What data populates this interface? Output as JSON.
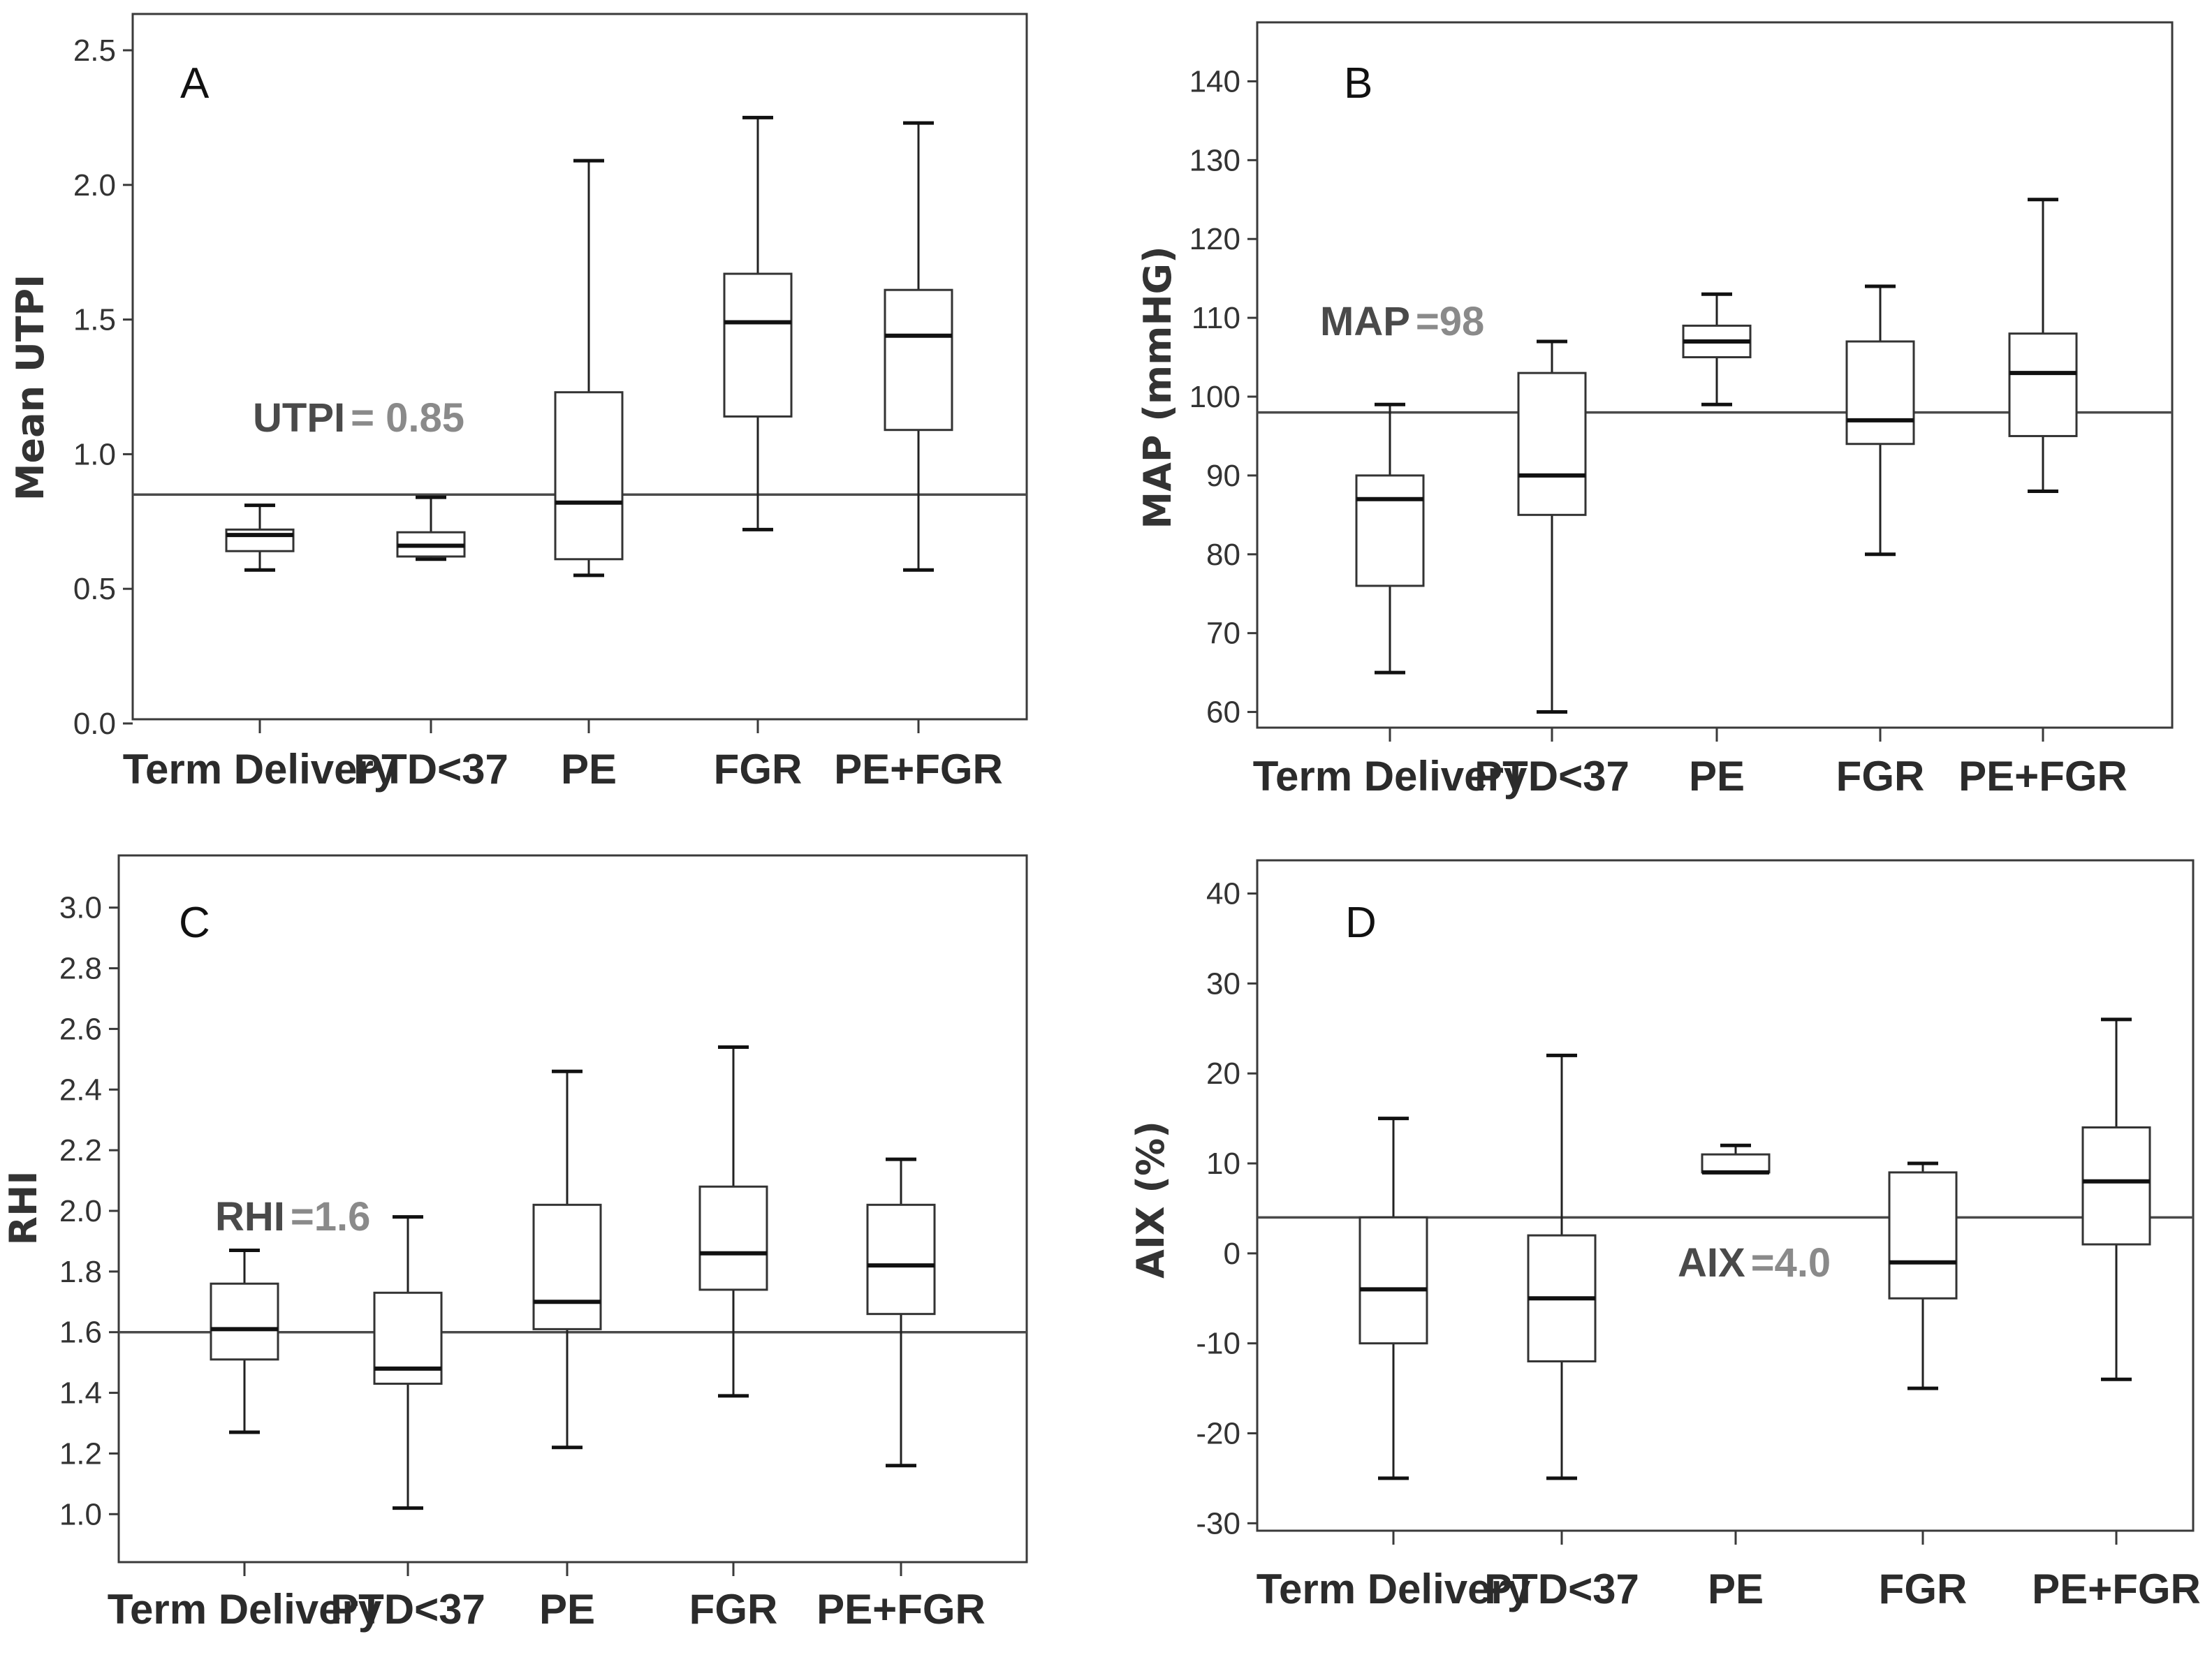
{
  "colors": {
    "frame": "#3a3a3a",
    "box_fill": "#ffffff",
    "reference_line": "#4a4a4a",
    "reference_value_text": "#8a8a8a"
  },
  "chart_data": [
    {
      "type": "box",
      "panel": "A",
      "ylabel": "Mean UTPI",
      "xlabel": "",
      "ylim": [
        0.0,
        2.5
      ],
      "yticks": [
        "0.0",
        "0.5",
        "1.0",
        "1.5",
        "2.0",
        "2.5"
      ],
      "categories": [
        "Term Delivery",
        "PTD<37",
        "PE",
        "FGR",
        "PE+FGR"
      ],
      "boxes": [
        {
          "min": 0.57,
          "q1": 0.64,
          "median": 0.7,
          "q3": 0.72,
          "max": 0.81
        },
        {
          "min": 0.61,
          "q1": 0.62,
          "median": 0.66,
          "q3": 0.71,
          "max": 0.84
        },
        {
          "min": 0.55,
          "q1": 0.61,
          "median": 0.82,
          "q3": 1.23,
          "max": 2.09
        },
        {
          "min": 0.72,
          "q1": 1.14,
          "median": 1.49,
          "q3": 1.67,
          "max": 2.25
        },
        {
          "min": 0.57,
          "q1": 1.09,
          "median": 1.44,
          "q3": 1.61,
          "max": 2.23
        }
      ],
      "reference": {
        "value": 0.85,
        "label": "UTPI",
        "value_text": "= 0.85"
      }
    },
    {
      "type": "box",
      "panel": "B",
      "ylabel": "MAP (mmHG)",
      "xlabel": "",
      "ylim": [
        55,
        145
      ],
      "yticks": [
        "60",
        "70",
        "80",
        "90",
        "100",
        "110",
        "120",
        "130",
        "140"
      ],
      "categories": [
        "Term Delivery",
        "PTD<37",
        "PE",
        "FGR",
        "PE+FGR"
      ],
      "boxes": [
        {
          "min": 65,
          "q1": 76,
          "median": 87,
          "q3": 90,
          "max": 99
        },
        {
          "min": 60,
          "q1": 85,
          "median": 90,
          "q3": 103,
          "max": 107
        },
        {
          "min": 99,
          "q1": 105,
          "median": 107,
          "q3": 109,
          "max": 113
        },
        {
          "min": 80,
          "q1": 94,
          "median": 97,
          "q3": 107,
          "max": 114
        },
        {
          "min": 88,
          "q1": 95,
          "median": 103,
          "q3": 108,
          "max": 125
        }
      ],
      "reference": {
        "value": 98,
        "label": "MAP",
        "value_text": "=98"
      }
    },
    {
      "type": "box",
      "panel": "C",
      "ylabel": "RHI",
      "xlabel": "",
      "ylim": [
        0.95,
        3.05
      ],
      "yticks": [
        "1.0",
        "1.2",
        "1.4",
        "1.6",
        "1.8",
        "2.0",
        "2.2",
        "2.4",
        "2.6",
        "2.8",
        "3.0"
      ],
      "categories": [
        "Term Delivery",
        "PTD<37",
        "PE",
        "FGR",
        "PE+FGR"
      ],
      "boxes": [
        {
          "min": 1.27,
          "q1": 1.51,
          "median": 1.61,
          "q3": 1.76,
          "max": 1.87
        },
        {
          "min": 1.02,
          "q1": 1.43,
          "median": 1.48,
          "q3": 1.73,
          "max": 1.98
        },
        {
          "min": 1.22,
          "q1": 1.61,
          "median": 1.7,
          "q3": 2.02,
          "max": 2.46
        },
        {
          "min": 1.39,
          "q1": 1.74,
          "median": 1.86,
          "q3": 2.08,
          "max": 2.54
        },
        {
          "min": 1.16,
          "q1": 1.66,
          "median": 1.82,
          "q3": 2.02,
          "max": 2.17
        }
      ],
      "reference": {
        "value": 1.6,
        "label": "RHI",
        "value_text": "=1.6"
      }
    },
    {
      "type": "box",
      "panel": "D",
      "ylabel": "AIX (%)",
      "xlabel": "",
      "ylim": [
        -33,
        44
      ],
      "yticks": [
        "-30",
        "-20",
        "-10",
        "0",
        "10",
        "20",
        "30",
        "40"
      ],
      "categories": [
        "Term Delivery",
        "PTD<37",
        "PE",
        "FGR",
        "PE+FGR"
      ],
      "boxes": [
        {
          "min": -25,
          "q1": -10,
          "median": -4,
          "q3": 4,
          "max": 15
        },
        {
          "min": -25,
          "q1": -12,
          "median": -5,
          "q3": 2,
          "max": 22
        },
        {
          "min": 9,
          "q1": 9,
          "median": 9,
          "q3": 11,
          "max": 12
        },
        {
          "min": -15,
          "q1": -5,
          "median": -1,
          "q3": 9,
          "max": 10
        },
        {
          "min": -14,
          "q1": 1,
          "median": 8,
          "q3": 14,
          "max": 26
        }
      ],
      "reference": {
        "value": 4.0,
        "label": "AIX",
        "value_text": "=4.0"
      }
    }
  ]
}
